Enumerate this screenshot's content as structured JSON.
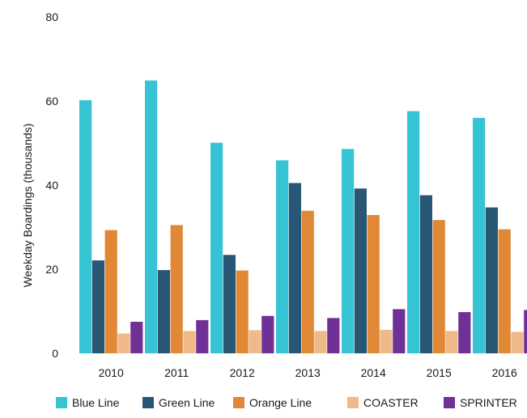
{
  "chart_data": {
    "type": "bar",
    "categories": [
      "2010",
      "2011",
      "2012",
      "2013",
      "2014",
      "2015",
      "2016"
    ],
    "ylabel": "Weekday Boardings (thousands)",
    "ylim": [
      0,
      80
    ],
    "yticks": [
      0,
      20,
      40,
      60,
      80
    ],
    "grid": false,
    "legend": "bottom",
    "series": [
      {
        "name": "Blue Line",
        "color": "#36c3d3",
        "values": [
          60.2,
          64.9,
          50.1,
          45.9,
          48.6,
          57.6,
          56.0
        ]
      },
      {
        "name": "Green Line",
        "color": "#285775",
        "values": [
          22.1,
          19.8,
          23.4,
          40.5,
          39.2,
          37.6,
          34.7
        ]
      },
      {
        "name": "Orange Line",
        "color": "#e08835",
        "values": [
          29.3,
          30.5,
          19.7,
          33.9,
          32.9,
          31.7,
          29.5
        ]
      },
      {
        "name": "COASTER",
        "color": "#f0b98a",
        "values": [
          4.7,
          5.3,
          5.5,
          5.3,
          5.6,
          5.3,
          5.1
        ]
      },
      {
        "name": "SPRINTER",
        "color": "#6f3196",
        "values": [
          7.5,
          7.9,
          8.9,
          8.4,
          10.5,
          9.8,
          10.3
        ]
      }
    ]
  }
}
